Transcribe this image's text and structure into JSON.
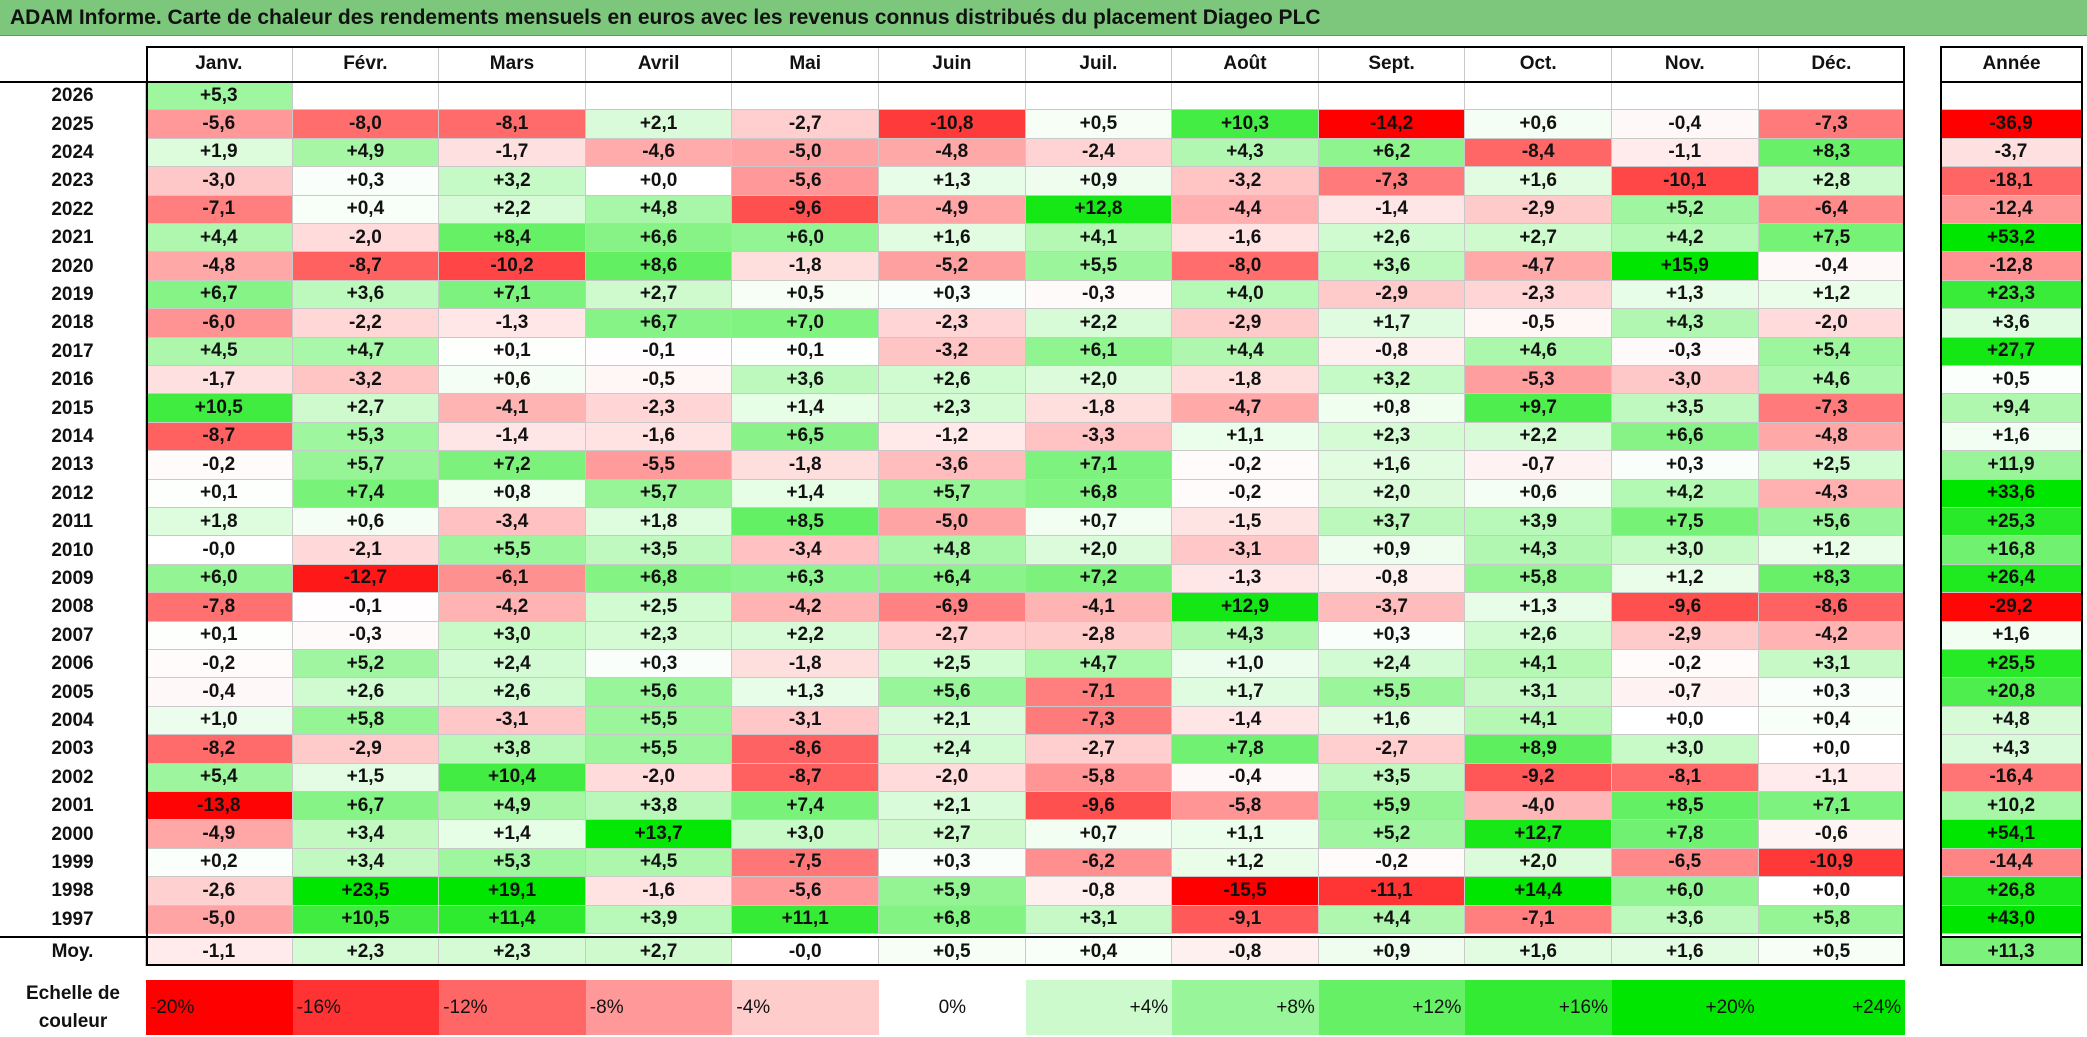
{
  "title": "ADAM Informe. Carte de chaleur des rendements mensuels en euros avec les revenus connus distribués du placement Diageo PLC",
  "months": [
    "Janv.",
    "Févr.",
    "Mars",
    "Avril",
    "Mai",
    "Juin",
    "Juil.",
    "Août",
    "Sept.",
    "Oct.",
    "Nov.",
    "Déc."
  ],
  "annual_header": "Année",
  "average_label": "Moy.",
  "scale_label_line1": "Echelle de",
  "scale_label_line2": "couleur",
  "colors": {
    "title_bg": "#7cc77c",
    "neg_max": "#ff0000",
    "pos_max": "#00e600",
    "neutral": "#ffffff"
  },
  "chart_data": {
    "type": "heatmap",
    "title": "ADAM Informe. Carte de chaleur des rendements mensuels en euros avec les revenus connus distribués du placement Diageo PLC",
    "x_categories": [
      "Janv.",
      "Févr.",
      "Mars",
      "Avril",
      "Mai",
      "Juin",
      "Juil.",
      "Août",
      "Sept.",
      "Oct.",
      "Nov.",
      "Déc."
    ],
    "rows": [
      {
        "year": "2026",
        "months": [
          "+5,3",
          "",
          "",
          "",
          "",
          "",
          "",
          "",
          "",
          "",
          "",
          ""
        ],
        "annual": ""
      },
      {
        "year": "2025",
        "months": [
          "-5,6",
          "-8,0",
          "-8,1",
          "+2,1",
          "-2,7",
          "-10,8",
          "+0,5",
          "+10,3",
          "-14,2",
          "+0,6",
          "-0,4",
          "-7,3"
        ],
        "annual": "-36,9"
      },
      {
        "year": "2024",
        "months": [
          "+1,9",
          "+4,9",
          "-1,7",
          "-4,6",
          "-5,0",
          "-4,8",
          "-2,4",
          "+4,3",
          "+6,2",
          "-8,4",
          "-1,1",
          "+8,3"
        ],
        "annual": "-3,7"
      },
      {
        "year": "2023",
        "months": [
          "-3,0",
          "+0,3",
          "+3,2",
          "+0,0",
          "-5,6",
          "+1,3",
          "+0,9",
          "-3,2",
          "-7,3",
          "+1,6",
          "-10,1",
          "+2,8"
        ],
        "annual": "-18,1"
      },
      {
        "year": "2022",
        "months": [
          "-7,1",
          "+0,4",
          "+2,2",
          "+4,8",
          "-9,6",
          "-4,9",
          "+12,8",
          "-4,4",
          "-1,4",
          "-2,9",
          "+5,2",
          "-6,4"
        ],
        "annual": "-12,4"
      },
      {
        "year": "2021",
        "months": [
          "+4,4",
          "-2,0",
          "+8,4",
          "+6,6",
          "+6,0",
          "+1,6",
          "+4,1",
          "-1,6",
          "+2,6",
          "+2,7",
          "+4,2",
          "+7,5"
        ],
        "annual": "+53,2"
      },
      {
        "year": "2020",
        "months": [
          "-4,8",
          "-8,7",
          "-10,2",
          "+8,6",
          "-1,8",
          "-5,2",
          "+5,5",
          "-8,0",
          "+3,6",
          "-4,7",
          "+15,9",
          "-0,4"
        ],
        "annual": "-12,8"
      },
      {
        "year": "2019",
        "months": [
          "+6,7",
          "+3,6",
          "+7,1",
          "+2,7",
          "+0,5",
          "+0,3",
          "-0,3",
          "+4,0",
          "-2,9",
          "-2,3",
          "+1,3",
          "+1,2"
        ],
        "annual": "+23,3"
      },
      {
        "year": "2018",
        "months": [
          "-6,0",
          "-2,2",
          "-1,3",
          "+6,7",
          "+7,0",
          "-2,3",
          "+2,2",
          "-2,9",
          "+1,7",
          "-0,5",
          "+4,3",
          "-2,0"
        ],
        "annual": "+3,6"
      },
      {
        "year": "2017",
        "months": [
          "+4,5",
          "+4,7",
          "+0,1",
          "-0,1",
          "+0,1",
          "-3,2",
          "+6,1",
          "+4,4",
          "-0,8",
          "+4,6",
          "-0,3",
          "+5,4"
        ],
        "annual": "+27,7"
      },
      {
        "year": "2016",
        "months": [
          "-1,7",
          "-3,2",
          "+0,6",
          "-0,5",
          "+3,6",
          "+2,6",
          "+2,0",
          "-1,8",
          "+3,2",
          "-5,3",
          "-3,0",
          "+4,6"
        ],
        "annual": "+0,5"
      },
      {
        "year": "2015",
        "months": [
          "+10,5",
          "+2,7",
          "-4,1",
          "-2,3",
          "+1,4",
          "+2,3",
          "-1,8",
          "-4,7",
          "+0,8",
          "+9,7",
          "+3,5",
          "-7,3"
        ],
        "annual": "+9,4"
      },
      {
        "year": "2014",
        "months": [
          "-8,7",
          "+5,3",
          "-1,4",
          "-1,6",
          "+6,5",
          "-1,2",
          "-3,3",
          "+1,1",
          "+2,3",
          "+2,2",
          "+6,6",
          "-4,8"
        ],
        "annual": "+1,6"
      },
      {
        "year": "2013",
        "months": [
          "-0,2",
          "+5,7",
          "+7,2",
          "-5,5",
          "-1,8",
          "-3,6",
          "+7,1",
          "-0,2",
          "+1,6",
          "-0,7",
          "+0,3",
          "+2,5"
        ],
        "annual": "+11,9"
      },
      {
        "year": "2012",
        "months": [
          "+0,1",
          "+7,4",
          "+0,8",
          "+5,7",
          "+1,4",
          "+5,7",
          "+6,8",
          "-0,2",
          "+2,0",
          "+0,6",
          "+4,2",
          "-4,3"
        ],
        "annual": "+33,6"
      },
      {
        "year": "2011",
        "months": [
          "+1,8",
          "+0,6",
          "-3,4",
          "+1,8",
          "+8,5",
          "-5,0",
          "+0,7",
          "-1,5",
          "+3,7",
          "+3,9",
          "+7,5",
          "+5,6"
        ],
        "annual": "+25,3"
      },
      {
        "year": "2010",
        "months": [
          "-0,0",
          "-2,1",
          "+5,5",
          "+3,5",
          "-3,4",
          "+4,8",
          "+2,0",
          "-3,1",
          "+0,9",
          "+4,3",
          "+3,0",
          "+1,2"
        ],
        "annual": "+16,8"
      },
      {
        "year": "2009",
        "months": [
          "+6,0",
          "-12,7",
          "-6,1",
          "+6,8",
          "+6,3",
          "+6,4",
          "+7,2",
          "-1,3",
          "-0,8",
          "+5,8",
          "+1,2",
          "+8,3"
        ],
        "annual": "+26,4"
      },
      {
        "year": "2008",
        "months": [
          "-7,8",
          "-0,1",
          "-4,2",
          "+2,5",
          "-4,2",
          "-6,9",
          "-4,1",
          "+12,9",
          "-3,7",
          "+1,3",
          "-9,6",
          "-8,6"
        ],
        "annual": "-29,2"
      },
      {
        "year": "2007",
        "months": [
          "+0,1",
          "-0,3",
          "+3,0",
          "+2,3",
          "+2,2",
          "-2,7",
          "-2,8",
          "+4,3",
          "+0,3",
          "+2,6",
          "-2,9",
          "-4,2"
        ],
        "annual": "+1,6"
      },
      {
        "year": "2006",
        "months": [
          "-0,2",
          "+5,2",
          "+2,4",
          "+0,3",
          "-1,8",
          "+2,5",
          "+4,7",
          "+1,0",
          "+2,4",
          "+4,1",
          "-0,2",
          "+3,1"
        ],
        "annual": "+25,5"
      },
      {
        "year": "2005",
        "months": [
          "-0,4",
          "+2,6",
          "+2,6",
          "+5,6",
          "+1,3",
          "+5,6",
          "-7,1",
          "+1,7",
          "+5,5",
          "+3,1",
          "-0,7",
          "+0,3"
        ],
        "annual": "+20,8"
      },
      {
        "year": "2004",
        "months": [
          "+1,0",
          "+5,8",
          "-3,1",
          "+5,5",
          "-3,1",
          "+2,1",
          "-7,3",
          "-1,4",
          "+1,6",
          "+4,1",
          "+0,0",
          "+0,4"
        ],
        "annual": "+4,8"
      },
      {
        "year": "2003",
        "months": [
          "-8,2",
          "-2,9",
          "+3,8",
          "+5,5",
          "-8,6",
          "+2,4",
          "-2,7",
          "+7,8",
          "-2,7",
          "+8,9",
          "+3,0",
          "+0,0"
        ],
        "annual": "+4,3"
      },
      {
        "year": "2002",
        "months": [
          "+5,4",
          "+1,5",
          "+10,4",
          "-2,0",
          "-8,7",
          "-2,0",
          "-5,8",
          "-0,4",
          "+3,5",
          "-9,2",
          "-8,1",
          "-1,1"
        ],
        "annual": "-16,4"
      },
      {
        "year": "2001",
        "months": [
          "-13,8",
          "+6,7",
          "+4,9",
          "+3,8",
          "+7,4",
          "+2,1",
          "-9,6",
          "-5,8",
          "+5,9",
          "-4,0",
          "+8,5",
          "+7,1"
        ],
        "annual": "+10,2"
      },
      {
        "year": "2000",
        "months": [
          "-4,9",
          "+3,4",
          "+1,4",
          "+13,7",
          "+3,0",
          "+2,7",
          "+0,7",
          "+1,1",
          "+5,2",
          "+12,7",
          "+7,8",
          "-0,6"
        ],
        "annual": "+54,1"
      },
      {
        "year": "1999",
        "months": [
          "+0,2",
          "+3,4",
          "+5,3",
          "+4,5",
          "-7,5",
          "+0,3",
          "-6,2",
          "+1,2",
          "-0,2",
          "+2,0",
          "-6,5",
          "-10,9"
        ],
        "annual": "-14,4"
      },
      {
        "year": "1998",
        "months": [
          "-2,6",
          "+23,5",
          "+19,1",
          "-1,6",
          "-5,6",
          "+5,9",
          "-0,8",
          "-15,5",
          "-11,1",
          "+14,4",
          "+6,0",
          "+0,0"
        ],
        "annual": "+26,8"
      },
      {
        "year": "1997",
        "months": [
          "-5,0",
          "+10,5",
          "+11,4",
          "+3,9",
          "+11,1",
          "+6,8",
          "+3,1",
          "-9,1",
          "+4,4",
          "-7,1",
          "+3,6",
          "+5,8"
        ],
        "annual": "+43,0"
      }
    ],
    "average": {
      "months": [
        "-1,1",
        "+2,3",
        "+2,3",
        "+2,7",
        "-0,0",
        "+0,5",
        "+0,4",
        "-0,8",
        "+0,9",
        "+1,6",
        "+1,6",
        "+0,5"
      ],
      "annual": "+11,3"
    },
    "color_scale": [
      {
        "label": "-20%",
        "value": -20
      },
      {
        "label": "-16%",
        "value": -16
      },
      {
        "label": "-12%",
        "value": -12
      },
      {
        "label": "-8%",
        "value": -8
      },
      {
        "label": "-4%",
        "value": -4
      },
      {
        "label": "0%",
        "value": 0
      },
      {
        "label": "+4%",
        "value": 4
      },
      {
        "label": "+8%",
        "value": 8
      },
      {
        "label": "+12%",
        "value": 12
      },
      {
        "label": "+16%",
        "value": 16
      },
      {
        "label": "+20%",
        "value": 20
      },
      {
        "label": "+24%",
        "value": 24
      }
    ]
  }
}
